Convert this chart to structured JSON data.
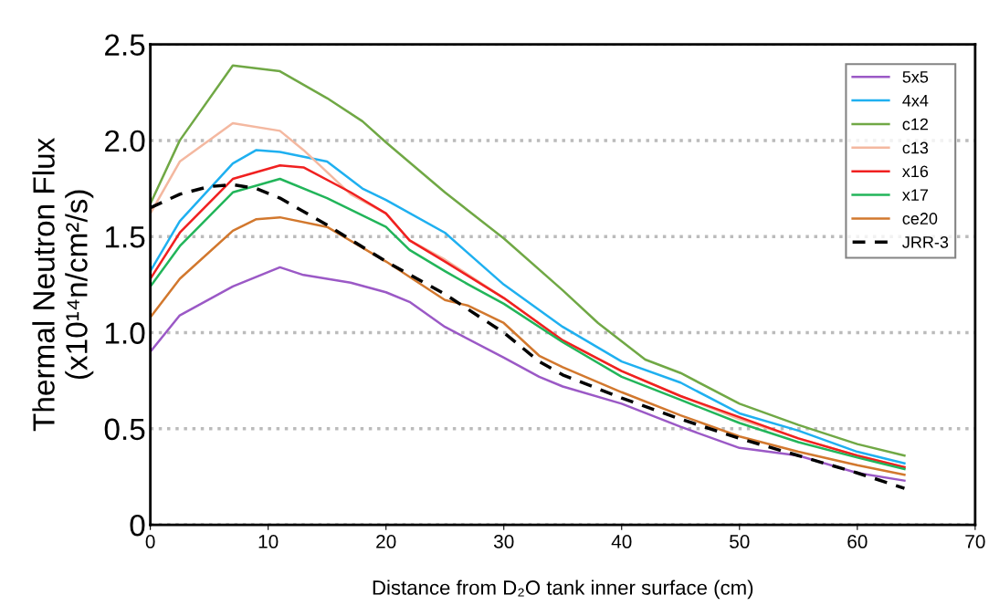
{
  "chart_data": {
    "type": "line",
    "xlabel": "Distance from D₂O tank inner surface (cm)",
    "ylabel": "Thermal Neutron Flux\n(x10¹⁴n/cm²/s)",
    "xlim": [
      0,
      70
    ],
    "xticks": [
      0,
      10,
      20,
      30,
      40,
      50,
      60,
      70
    ],
    "ylim": [
      0,
      2.5
    ],
    "yticks": [
      0,
      0.5,
      {
        "value": 1,
        "label": "1.0"
      },
      1.5,
      {
        "value": 2,
        "label": "2.0"
      },
      2.5
    ],
    "grid": "y",
    "legend": "top right",
    "marker": "none",
    "series": [
      {
        "name": "5x5",
        "color": "#9b59c6",
        "x": [
          0,
          2.5,
          7,
          11,
          13,
          17,
          20,
          22,
          25,
          30,
          33,
          35,
          40,
          45,
          50,
          55,
          60,
          64
        ],
        "values": [
          0.9,
          1.09,
          1.24,
          1.34,
          1.3,
          1.26,
          1.21,
          1.16,
          1.03,
          0.87,
          0.77,
          0.72,
          0.63,
          0.51,
          0.4,
          0.36,
          0.27,
          0.23
        ]
      },
      {
        "name": "4x4",
        "color": "#1fb0f0",
        "x": [
          0,
          2.5,
          7,
          9,
          11,
          15,
          18,
          20,
          25,
          30,
          35,
          40,
          45,
          50,
          55,
          60,
          64
        ],
        "values": [
          1.32,
          1.58,
          1.88,
          1.95,
          1.94,
          1.89,
          1.75,
          1.69,
          1.52,
          1.25,
          1.03,
          0.85,
          0.74,
          0.58,
          0.49,
          0.38,
          0.32
        ]
      },
      {
        "name": "c12",
        "color": "#70a845",
        "x": [
          0,
          2.5,
          7,
          11,
          15,
          18,
          20,
          25,
          30,
          35,
          38,
          42,
          45,
          50,
          55,
          60,
          64
        ],
        "values": [
          1.67,
          2.0,
          2.39,
          2.36,
          2.22,
          2.1,
          1.99,
          1.73,
          1.49,
          1.22,
          1.05,
          0.86,
          0.79,
          0.63,
          0.52,
          0.42,
          0.36
        ]
      },
      {
        "name": "c13",
        "color": "#f4b8a0",
        "x": [
          0,
          2.5,
          7,
          11,
          13,
          17,
          20,
          22,
          25,
          30,
          35,
          40,
          45,
          50,
          55,
          60,
          64
        ],
        "values": [
          1.62,
          1.89,
          2.09,
          2.05,
          1.95,
          1.72,
          1.62,
          1.48,
          1.38,
          1.18,
          0.96,
          0.8,
          0.67,
          0.55,
          0.45,
          0.36,
          0.3
        ]
      },
      {
        "name": "x16",
        "color": "#f02020",
        "x": [
          0,
          2.5,
          7,
          11,
          13,
          17,
          20,
          22,
          25,
          30,
          35,
          40,
          45,
          50,
          55,
          60,
          64
        ],
        "values": [
          1.28,
          1.52,
          1.8,
          1.87,
          1.86,
          1.73,
          1.62,
          1.48,
          1.37,
          1.18,
          0.96,
          0.8,
          0.67,
          0.56,
          0.45,
          0.36,
          0.3
        ]
      },
      {
        "name": "x17",
        "color": "#22b55a",
        "x": [
          0,
          2.5,
          7,
          11,
          15,
          20,
          22,
          25,
          27,
          30,
          35,
          40,
          45,
          50,
          55,
          60,
          64
        ],
        "values": [
          1.24,
          1.45,
          1.73,
          1.8,
          1.7,
          1.55,
          1.43,
          1.32,
          1.25,
          1.15,
          0.95,
          0.77,
          0.65,
          0.53,
          0.43,
          0.35,
          0.29
        ]
      },
      {
        "name": "ce20",
        "color": "#d2782e",
        "x": [
          0,
          2.5,
          7,
          9,
          11,
          15,
          20,
          25,
          27,
          30,
          33,
          35,
          40,
          45,
          50,
          55,
          60,
          64
        ],
        "values": [
          1.08,
          1.28,
          1.53,
          1.59,
          1.6,
          1.55,
          1.37,
          1.17,
          1.14,
          1.05,
          0.88,
          0.82,
          0.69,
          0.57,
          0.46,
          0.38,
          0.31,
          0.26
        ]
      },
      {
        "name": "JRR-3",
        "color": "#000000",
        "line_style": "dashed",
        "x": [
          0,
          2.5,
          5,
          7,
          9,
          11,
          13,
          15,
          20,
          25,
          30,
          33,
          35,
          40,
          45,
          50,
          55,
          60,
          64
        ],
        "values": [
          1.65,
          1.72,
          1.76,
          1.77,
          1.75,
          1.7,
          1.63,
          1.56,
          1.37,
          1.2,
          1.0,
          0.85,
          0.78,
          0.66,
          0.55,
          0.45,
          0.36,
          0.27,
          0.19
        ]
      }
    ]
  }
}
